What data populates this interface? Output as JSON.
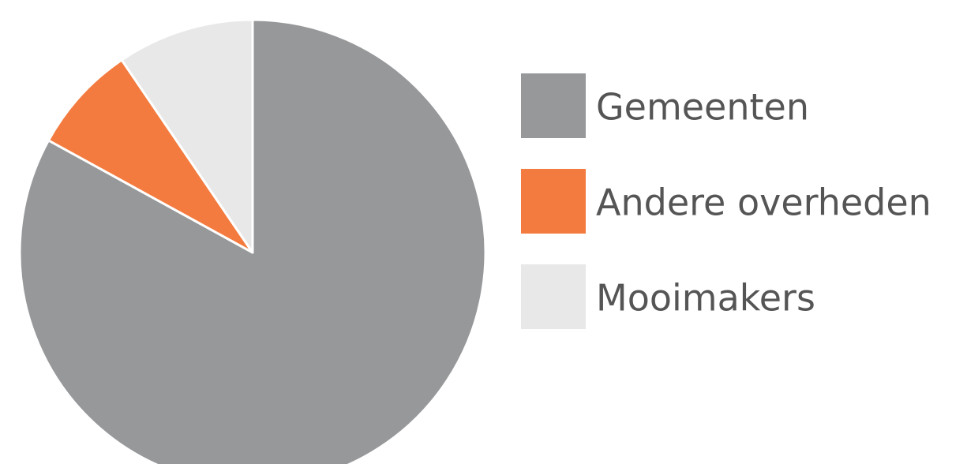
{
  "chart_data": {
    "type": "pie",
    "categories": [
      "Gemeenten",
      "Andere overheden",
      "Mooimakers"
    ],
    "values": [
      83,
      7.5,
      9.5
    ],
    "colors": [
      "#96989a",
      "#f47b3f",
      "#e8e8e8"
    ]
  }
}
